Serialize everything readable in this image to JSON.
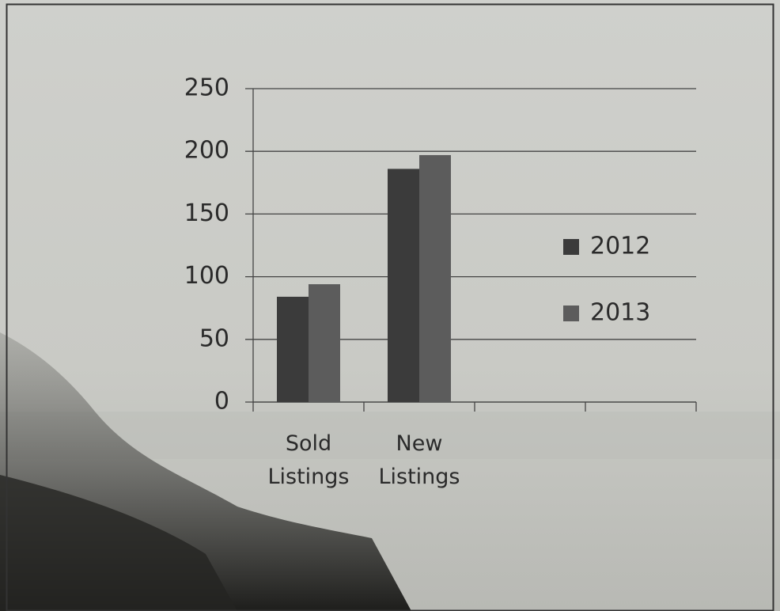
{
  "chart_data": {
    "type": "bar",
    "categories": [
      "Sold Listings",
      "New Listings",
      null,
      null
    ],
    "series": [
      {
        "name": "2012",
        "color": "#3b3b3b",
        "values": [
          84,
          186,
          null,
          null
        ]
      },
      {
        "name": "2013",
        "color": "#5c5c5c",
        "values": [
          94,
          197,
          null,
          null
        ]
      }
    ],
    "ylim": [
      0,
      250
    ],
    "yticks": [
      0,
      50,
      100,
      150,
      200,
      250
    ],
    "grid": true,
    "legend": "right"
  }
}
